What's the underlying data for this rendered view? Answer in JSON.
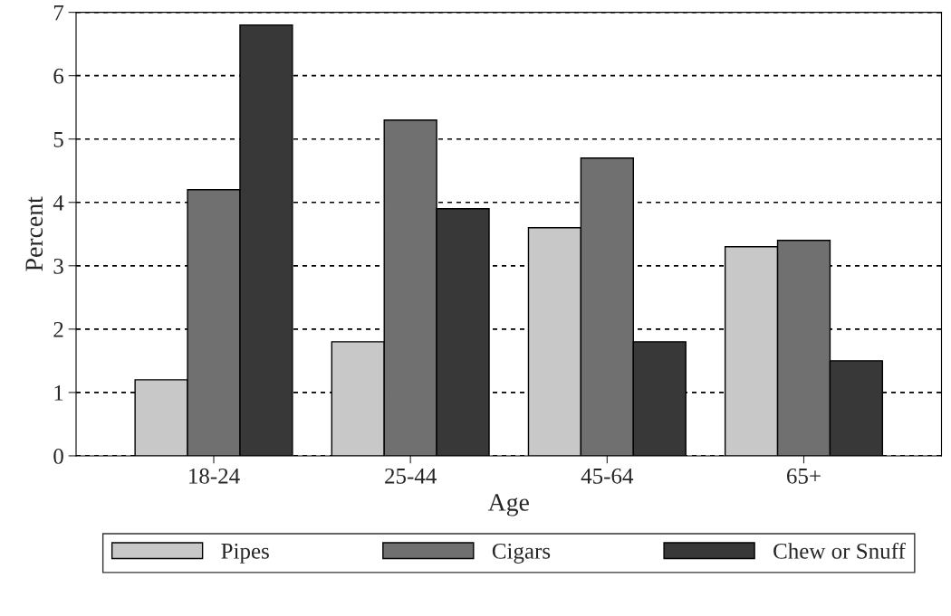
{
  "chart_data": {
    "type": "bar",
    "xlabel": "Age",
    "ylabel": "Percent",
    "categories": [
      "18-24",
      "25-44",
      "45-64",
      "65+"
    ],
    "series": [
      {
        "name": "Pipes",
        "color": "#c8c8c8",
        "values": [
          1.2,
          1.8,
          3.6,
          3.3
        ]
      },
      {
        "name": "Cigars",
        "color": "#707070",
        "values": [
          4.2,
          5.3,
          4.7,
          3.4
        ]
      },
      {
        "name": "Chew or Snuff",
        "color": "#383838",
        "values": [
          6.8,
          3.9,
          1.8,
          1.5
        ]
      }
    ],
    "ylim": [
      0,
      7
    ],
    "yticks": [
      0,
      1,
      2,
      3,
      4,
      5,
      6,
      7
    ],
    "grid": "y",
    "legend": "bottom"
  }
}
